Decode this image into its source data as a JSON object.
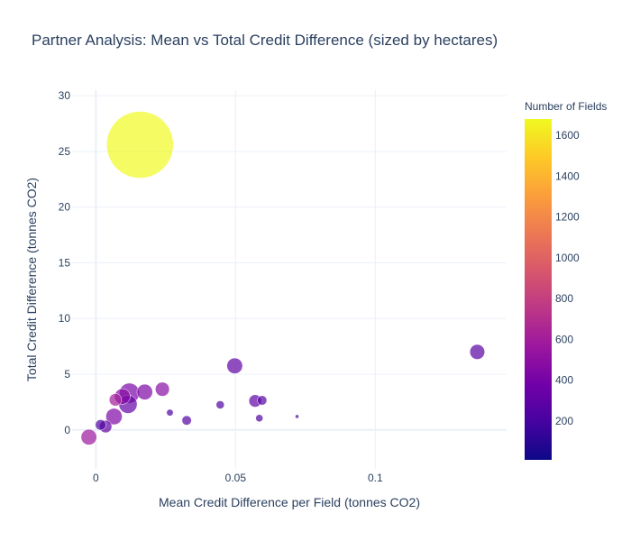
{
  "chart_data": {
    "type": "scatter",
    "title": "Partner Analysis: Mean vs Total Credit Difference (sized by hectares)",
    "xlabel": "Mean Credit Difference per Field (tonnes CO2)",
    "ylabel": "Total Credit Difference (tonnes CO2)",
    "xlim": [
      -0.0085,
      0.147
    ],
    "ylim": [
      -3.5,
      30.5
    ],
    "x_ticks": [
      0,
      0.05,
      0.1
    ],
    "x_tick_labels": [
      "0",
      "0.05",
      "0.1"
    ],
    "y_ticks": [
      0,
      5,
      10,
      15,
      20,
      25,
      30
    ],
    "y_tick_labels": [
      "0",
      "5",
      "10",
      "15",
      "20",
      "25",
      "30"
    ],
    "grid": true,
    "colorbar": {
      "title": "Number of Fields",
      "range": [
        10,
        1680
      ],
      "ticks": [
        200,
        400,
        600,
        800,
        1000,
        1200,
        1400,
        1600
      ],
      "tick_labels": [
        "200",
        "400",
        "600",
        "800",
        "1000",
        "1200",
        "1400",
        "1600"
      ],
      "colorscale": [
        "#0d0887",
        "#46039f",
        "#7201a8",
        "#9c179e",
        "#bd3786",
        "#d8576b",
        "#ed7953",
        "#fb9f3a",
        "#fdca26",
        "#f0f921"
      ]
    },
    "size_variable": "hectares",
    "points": [
      {
        "x": 0.0158,
        "y": 25.6,
        "fields": 1680,
        "size": 100
      },
      {
        "x": 0.1365,
        "y": 7.0,
        "fields": 270,
        "size": 5
      },
      {
        "x": 0.0497,
        "y": 5.75,
        "fields": 300,
        "size": 5.5
      },
      {
        "x": 0.012,
        "y": 3.3,
        "fields": 420,
        "size": 9
      },
      {
        "x": 0.0115,
        "y": 2.3,
        "fields": 320,
        "size": 7.5
      },
      {
        "x": 0.0095,
        "y": 3.0,
        "fields": 480,
        "size": 5.5
      },
      {
        "x": 0.0175,
        "y": 3.4,
        "fields": 430,
        "size": 5.5
      },
      {
        "x": 0.0238,
        "y": 3.65,
        "fields": 480,
        "size": 4.5
      },
      {
        "x": 0.0065,
        "y": 1.2,
        "fields": 440,
        "size": 6
      },
      {
        "x": 0.007,
        "y": 2.7,
        "fields": 600,
        "size": 3.5
      },
      {
        "x": -0.0025,
        "y": -0.65,
        "fields": 560,
        "size": 5.5
      },
      {
        "x": 0.0035,
        "y": 0.3,
        "fields": 300,
        "size": 3.5
      },
      {
        "x": 0.0017,
        "y": 0.45,
        "fields": 220,
        "size": 2.5
      },
      {
        "x": 0.057,
        "y": 2.6,
        "fields": 300,
        "size": 3.5
      },
      {
        "x": 0.0595,
        "y": 2.65,
        "fields": 260,
        "size": 2
      },
      {
        "x": 0.0445,
        "y": 2.25,
        "fields": 230,
        "size": 1.5
      },
      {
        "x": 0.0325,
        "y": 0.85,
        "fields": 250,
        "size": 2
      },
      {
        "x": 0.0265,
        "y": 1.55,
        "fields": 220,
        "size": 1
      },
      {
        "x": 0.0585,
        "y": 1.05,
        "fields": 240,
        "size": 1.2
      },
      {
        "x": 0.072,
        "y": 1.2,
        "fields": 200,
        "size": 0.3
      }
    ]
  }
}
